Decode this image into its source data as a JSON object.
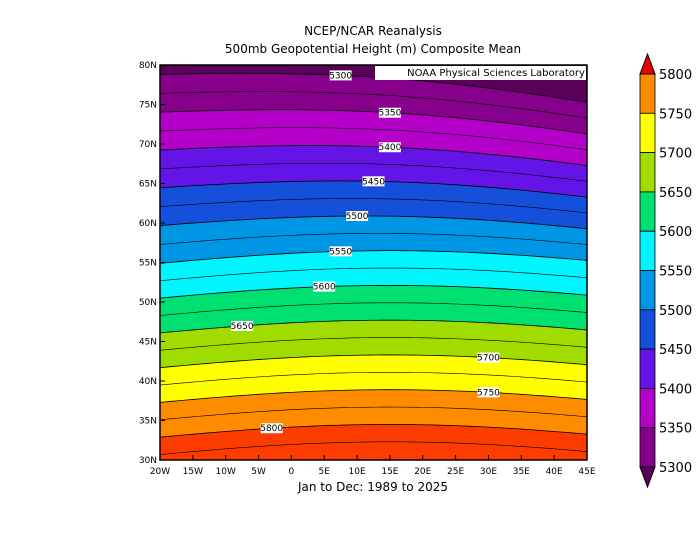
{
  "header": {
    "title": "NCEP/NCAR Reanalysis",
    "subtitle": "500mb Geopotential Height (m) Composite Mean"
  },
  "attribution": "NOAA Physical Sciences Laboratory",
  "footer": "Jan to Dec: 1989 to 2025",
  "map": {
    "lon_ticks": [
      "20W",
      "15W",
      "10W",
      "5W",
      "0",
      "5E",
      "10E",
      "15E",
      "20E",
      "25E",
      "30E",
      "35E",
      "40E",
      "45E"
    ],
    "lat_ticks": [
      "30N",
      "35N",
      "40N",
      "45N",
      "50N",
      "55N",
      "60N",
      "65N",
      "70N",
      "75N",
      "80N"
    ],
    "contour_labels": [
      "5300",
      "5350",
      "5400",
      "5450",
      "5500",
      "5550",
      "5600",
      "5650",
      "5700",
      "5750",
      "5800"
    ]
  },
  "colorbar": {
    "labels": [
      "5800",
      "5750",
      "5700",
      "5650",
      "5600",
      "5550",
      "5500",
      "5450",
      "5400",
      "5350",
      "5300"
    ]
  }
}
